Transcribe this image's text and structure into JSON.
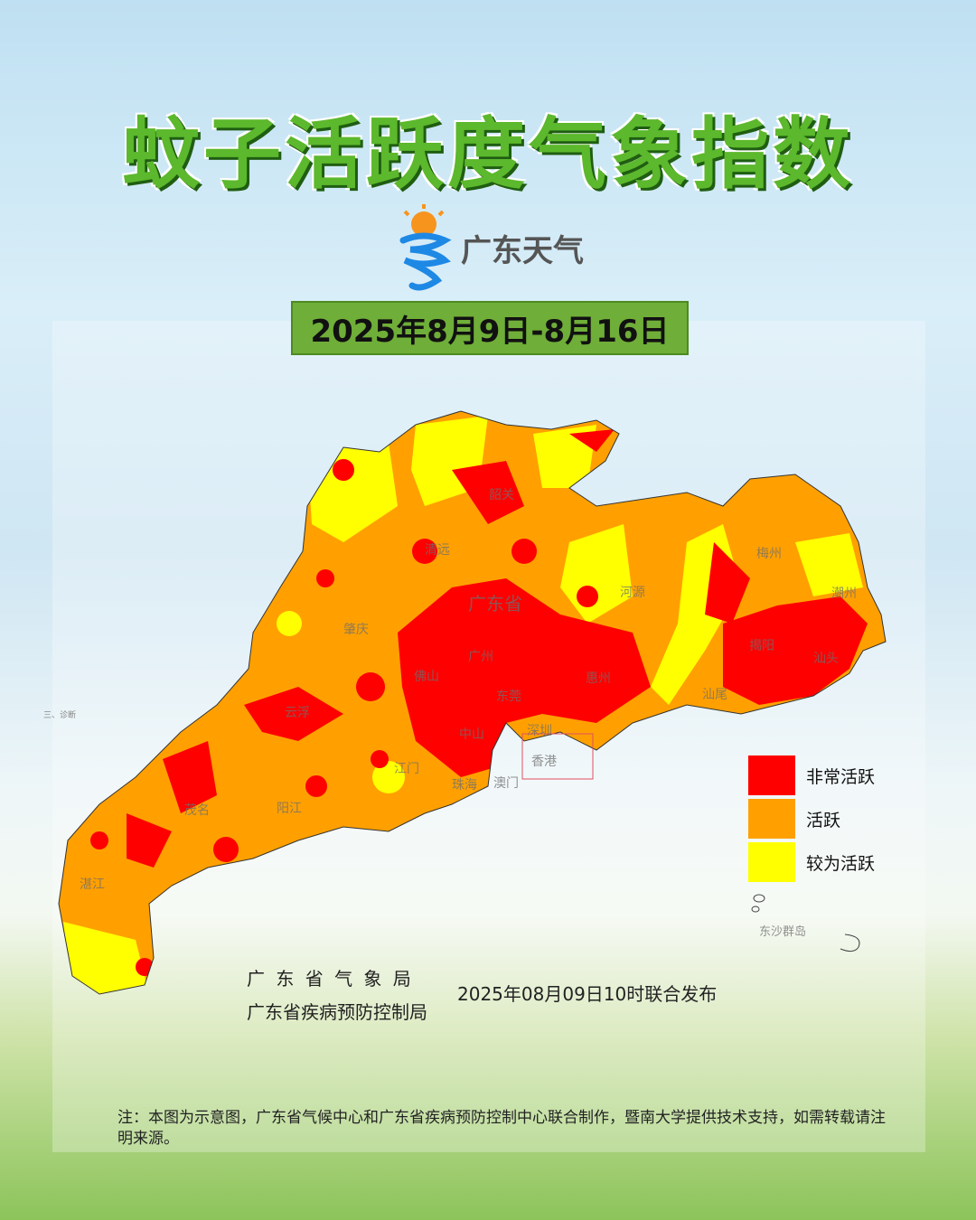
{
  "title": "蚊子活跃度气象指数",
  "logo": {
    "text": "广东天气"
  },
  "date_range": "2025年8月9日-8月16日",
  "map": {
    "province_label": "广东省",
    "cities": [
      "韶关",
      "清远",
      "广州",
      "佛山",
      "肇庆",
      "云浮",
      "东莞",
      "深圳",
      "中山",
      "江门",
      "珠海",
      "澳门",
      "香港",
      "阳江",
      "茂名",
      "湛江",
      "河源",
      "惠州",
      "梅州",
      "潮州",
      "揭阳",
      "汕头",
      "汕尾"
    ],
    "islands_label": "东沙群岛",
    "corner_text": "三、诊断"
  },
  "legend": [
    {
      "label": "非常活跃",
      "color": "#ff0000"
    },
    {
      "label": "活跃",
      "color": "#ffa000"
    },
    {
      "label": "较为活跃",
      "color": "#ffff00"
    }
  ],
  "issuers": [
    "广 东 省 气 象 局",
    "广东省疾病预防控制局"
  ],
  "published": "2025年08月09日10时联合发布",
  "note": "注：本图为示意图，广东省气候中心和广东省疾病预防控制中心联合制作，暨南大学提供技术支持，如需转载请注明来源。"
}
